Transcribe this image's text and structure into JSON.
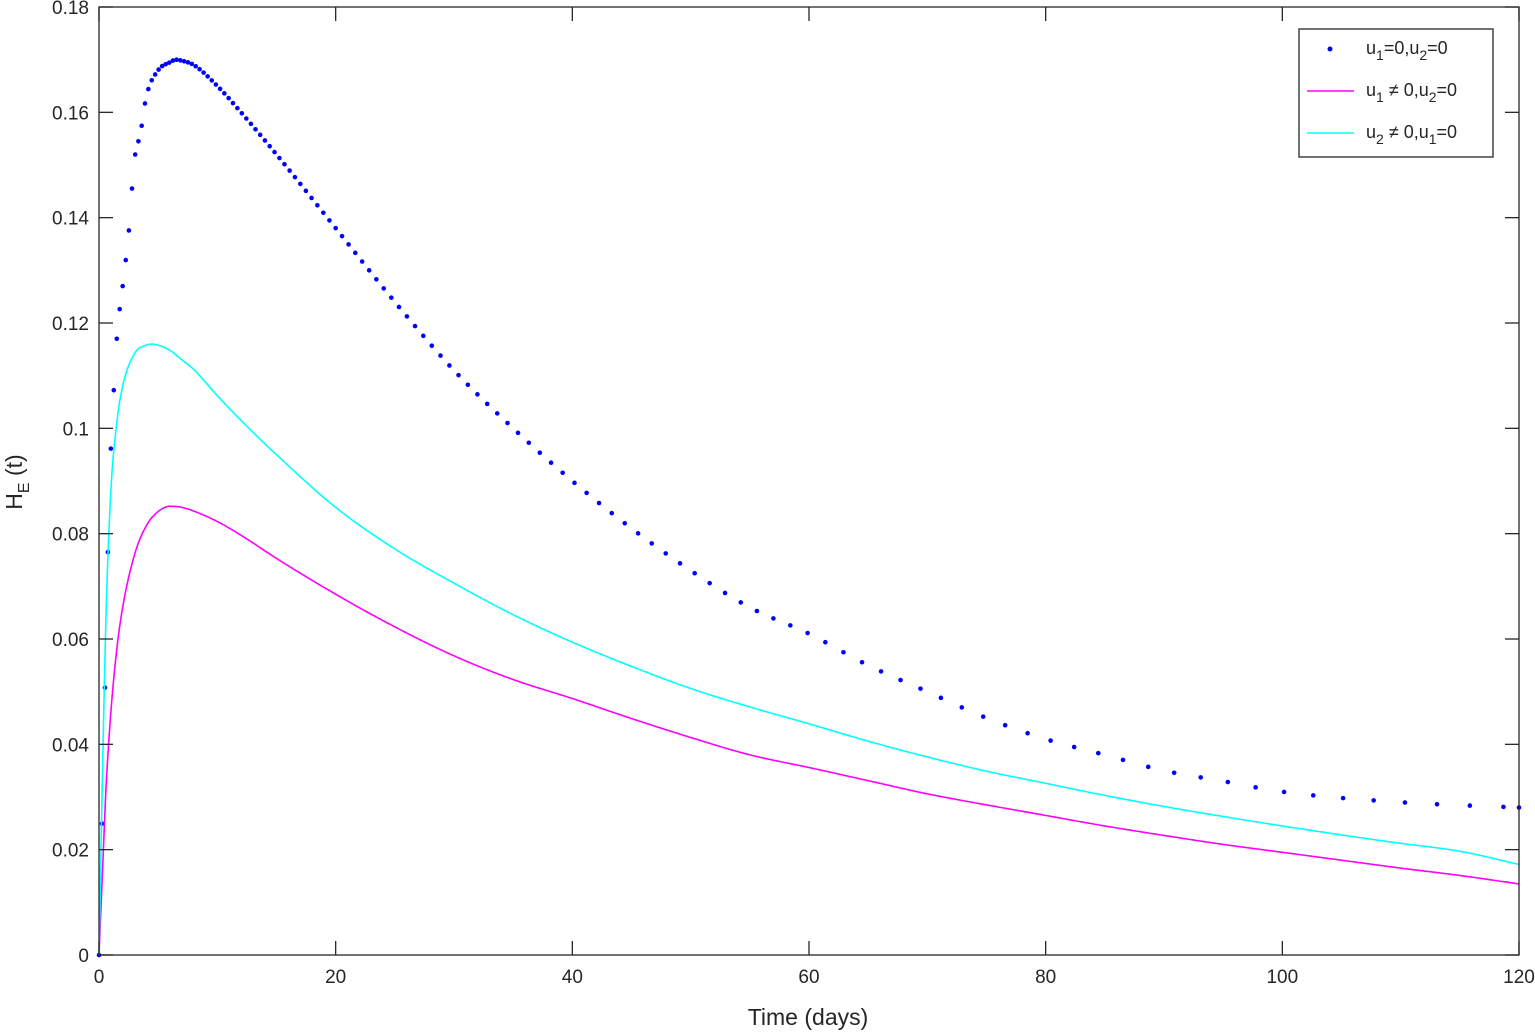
{
  "chart_data": {
    "type": "line",
    "xlabel": "Time (days)",
    "ylabel": {
      "main": "H",
      "sub": "E",
      "rest": " (t)"
    },
    "xlim": [
      0,
      120
    ],
    "ylim": [
      0,
      0.18
    ],
    "xticks": [
      0,
      20,
      40,
      60,
      80,
      100,
      120
    ],
    "xtick_labels": [
      "0",
      "20",
      "40",
      "60",
      "80",
      "100",
      "120"
    ],
    "yticks": [
      0,
      0.02,
      0.04,
      0.06,
      0.08,
      0.1,
      0.12,
      0.14,
      0.16,
      0.18
    ],
    "ytick_labels": [
      "0",
      "0.02",
      "0.04",
      "0.06",
      "0.08",
      "0.1",
      "0.12",
      "0.14",
      "0.16",
      "0.18"
    ],
    "grid": false,
    "legend_position": "top-right",
    "series": [
      {
        "name": "u1=0,u2=0",
        "legend": [
          [
            "u",
            ""
          ],
          [
            "1",
            "sub"
          ],
          [
            "=0,u",
            ""
          ],
          [
            "2",
            "sub"
          ],
          [
            "=0",
            ""
          ]
        ],
        "style": "dots",
        "color": "#0000ff",
        "x": [
          0,
          0.3,
          0.6,
          0.9,
          1.2,
          1.5,
          2,
          2.5,
          3,
          3.5,
          4,
          5,
          6,
          6.5,
          7,
          8,
          10,
          12,
          15,
          20,
          25,
          30,
          35,
          40,
          45,
          50,
          55,
          60,
          65,
          70,
          75,
          80,
          85,
          90,
          95,
          100,
          110,
          120
        ],
        "y": [
          0,
          0.03,
          0.061,
          0.09,
          0.105,
          0.117,
          0.127,
          0.137,
          0.151,
          0.156,
          0.163,
          0.168,
          0.1695,
          0.17,
          0.1698,
          0.169,
          0.165,
          0.16,
          0.152,
          0.138,
          0.124,
          0.111,
          0.1,
          0.09,
          0.081,
          0.073,
          0.066,
          0.061,
          0.055,
          0.05,
          0.045,
          0.041,
          0.038,
          0.035,
          0.033,
          0.031,
          0.029,
          0.028
        ]
      },
      {
        "name": "u1 ≠ 0,u2=0",
        "legend": [
          [
            "u",
            ""
          ],
          [
            "1",
            "sub"
          ],
          [
            " ≠ 0,u",
            ""
          ],
          [
            "2",
            "sub"
          ],
          [
            "=0",
            ""
          ]
        ],
        "style": "line",
        "color": "#ff00ff",
        "x": [
          0,
          0.3,
          0.6,
          1,
          1.5,
          2,
          3,
          4,
          5,
          6,
          7,
          8,
          10,
          12,
          15,
          20,
          25,
          30,
          35,
          40,
          45,
          50,
          55,
          60,
          65,
          70,
          75,
          80,
          85,
          90,
          95,
          100,
          105,
          110,
          115,
          120
        ],
        "y": [
          0,
          0.016,
          0.032,
          0.046,
          0.058,
          0.066,
          0.076,
          0.0815,
          0.0842,
          0.0852,
          0.085,
          0.0843,
          0.0823,
          0.0797,
          0.0753,
          0.0685,
          0.0623,
          0.0568,
          0.0523,
          0.0487,
          0.0449,
          0.0413,
          0.038,
          0.0356,
          0.0331,
          0.0306,
          0.0285,
          0.0265,
          0.0245,
          0.0227,
          0.021,
          0.0195,
          0.018,
          0.0165,
          0.0151,
          0.0135
        ]
      },
      {
        "name": "u2 ≠ 0,u1=0",
        "legend": [
          [
            "u",
            ""
          ],
          [
            "2",
            "sub"
          ],
          [
            " ≠ 0,u",
            ""
          ],
          [
            "1",
            "sub"
          ],
          [
            "=0",
            ""
          ]
        ],
        "style": "line",
        "color": "#00ffff",
        "x": [
          0,
          0.3,
          0.6,
          1,
          1.5,
          2,
          3,
          4,
          4.5,
          5,
          6,
          7,
          8,
          10,
          12,
          15,
          20,
          25,
          30,
          35,
          40,
          45,
          50,
          55,
          60,
          65,
          70,
          75,
          80,
          85,
          90,
          95,
          100,
          105,
          110,
          115,
          120
        ],
        "y": [
          0,
          0.035,
          0.065,
          0.088,
          0.101,
          0.108,
          0.1142,
          0.1158,
          0.116,
          0.1158,
          0.1148,
          0.113,
          0.1112,
          0.1062,
          0.1015,
          0.095,
          0.085,
          0.0771,
          0.0706,
          0.0646,
          0.0594,
          0.0548,
          0.0506,
          0.0471,
          0.0439,
          0.0406,
          0.0376,
          0.0349,
          0.0326,
          0.0303,
          0.0282,
          0.0263,
          0.0245,
          0.0228,
          0.0212,
          0.0197,
          0.0172
        ]
      }
    ]
  }
}
